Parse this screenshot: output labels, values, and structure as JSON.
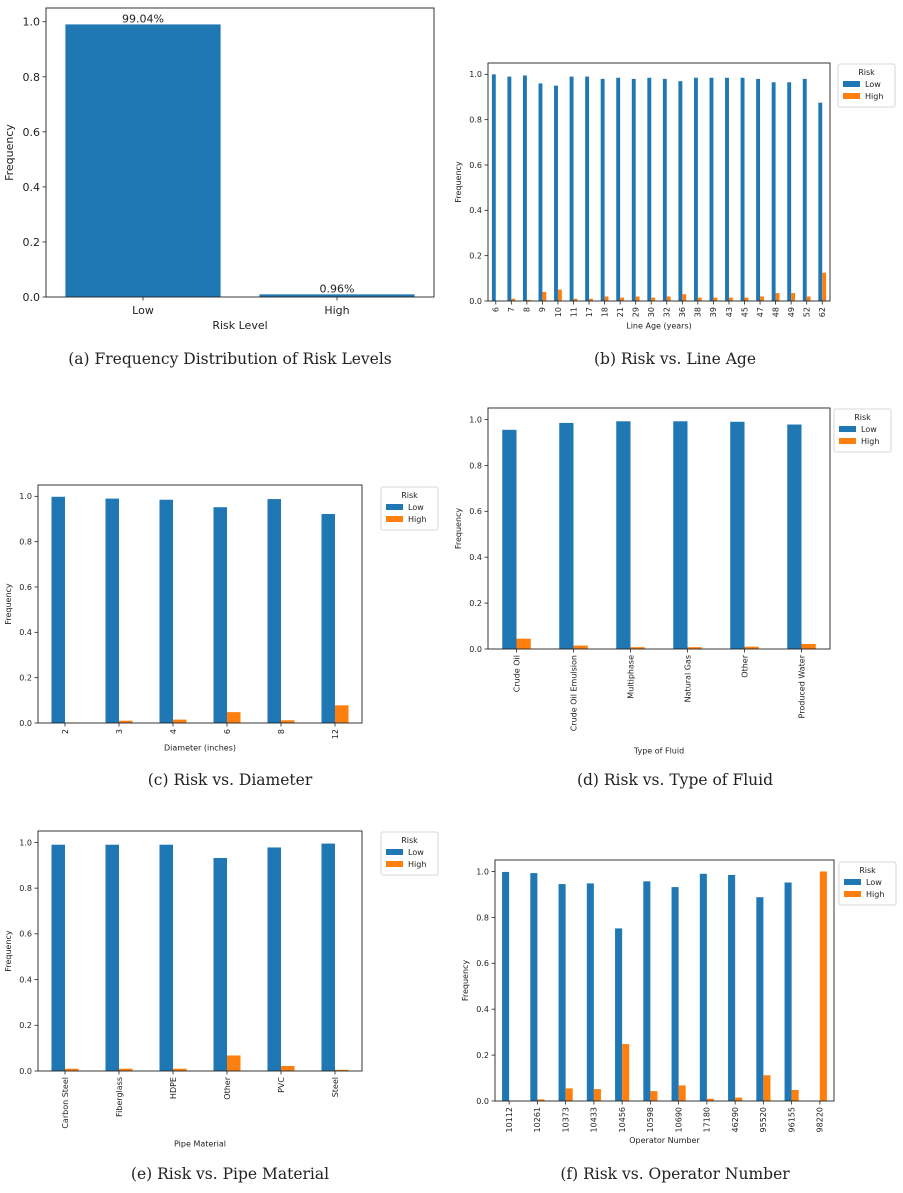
{
  "colors": {
    "low": "#1f77b4",
    "high": "#ff7f0e"
  },
  "chart_data": [
    {
      "id": "a",
      "type": "bar",
      "caption": "(a) Frequency Distribution of Risk Levels",
      "categories": [
        "Low",
        "High"
      ],
      "values": [
        0.9904,
        0.0096
      ],
      "data_labels": [
        "99.04%",
        "0.96%"
      ],
      "xlabel": "Risk Level",
      "ylabel": "Frequency",
      "ylim": [
        0,
        1.05
      ],
      "yticks": [
        0.0,
        0.2,
        0.4,
        0.6,
        0.8,
        1.0
      ],
      "legend": null,
      "grid": false
    },
    {
      "id": "b",
      "type": "bar",
      "caption": "(b) Risk vs. Line Age",
      "categories": [
        "6",
        "7",
        "8",
        "9",
        "10",
        "11",
        "17",
        "18",
        "21",
        "29",
        "30",
        "32",
        "36",
        "38",
        "39",
        "43",
        "45",
        "47",
        "48",
        "49",
        "52",
        "62"
      ],
      "series": [
        {
          "name": "Low",
          "values": [
            1.0,
            0.99,
            0.995,
            0.96,
            0.95,
            0.99,
            0.99,
            0.98,
            0.985,
            0.98,
            0.985,
            0.98,
            0.97,
            0.985,
            0.985,
            0.985,
            0.985,
            0.98,
            0.965,
            0.965,
            0.98,
            0.875
          ]
        },
        {
          "name": "High",
          "values": [
            0.0,
            0.01,
            0.005,
            0.04,
            0.05,
            0.01,
            0.01,
            0.02,
            0.015,
            0.02,
            0.015,
            0.02,
            0.03,
            0.015,
            0.015,
            0.015,
            0.015,
            0.02,
            0.035,
            0.035,
            0.02,
            0.125
          ]
        }
      ],
      "xlabel": "Line Age (years)",
      "ylabel": "Frequency",
      "ylim": [
        0,
        1.05
      ],
      "yticks": [
        0.0,
        0.2,
        0.4,
        0.6,
        0.8,
        1.0
      ],
      "legend": {
        "title": "Risk",
        "placement": "outside-right"
      },
      "grid": false
    },
    {
      "id": "c",
      "type": "bar",
      "caption": "(c) Risk vs. Diameter",
      "categories": [
        "2",
        "3",
        "4",
        "6",
        "8",
        "12"
      ],
      "series": [
        {
          "name": "Low",
          "values": [
            0.998,
            0.99,
            0.985,
            0.952,
            0.988,
            0.922
          ]
        },
        {
          "name": "High",
          "values": [
            0.002,
            0.01,
            0.015,
            0.048,
            0.012,
            0.078
          ]
        }
      ],
      "xlabel": "Diameter (inches)",
      "ylabel": "Frequency",
      "ylim": [
        0,
        1.05
      ],
      "yticks": [
        0.0,
        0.2,
        0.4,
        0.6,
        0.8,
        1.0
      ],
      "legend": {
        "title": "Risk",
        "placement": "outside-right"
      },
      "grid": false
    },
    {
      "id": "d",
      "type": "bar",
      "caption": "(d) Risk vs. Type of Fluid",
      "categories": [
        "Crude Oil",
        "Crude Oil Emulsion",
        "Multiphase",
        "Natural Gas",
        "Other",
        "Produced Water"
      ],
      "series": [
        {
          "name": "Low",
          "values": [
            0.955,
            0.985,
            0.992,
            0.992,
            0.99,
            0.978
          ]
        },
        {
          "name": "High",
          "values": [
            0.045,
            0.015,
            0.008,
            0.008,
            0.01,
            0.022
          ]
        }
      ],
      "xlabel": "Type of Fluid",
      "ylabel": "Frequency",
      "ylim": [
        0,
        1.05
      ],
      "yticks": [
        0.0,
        0.2,
        0.4,
        0.6,
        0.8,
        1.0
      ],
      "legend": {
        "title": "Risk",
        "placement": "outside-right"
      },
      "grid": false
    },
    {
      "id": "e",
      "type": "bar",
      "caption": "(e) Risk vs. Pipe Material",
      "categories": [
        "Carbon Steel",
        "Fiberglass",
        "HDPE",
        "Other",
        "PVC",
        "Steel"
      ],
      "series": [
        {
          "name": "Low",
          "values": [
            0.99,
            0.99,
            0.99,
            0.932,
            0.978,
            0.995
          ]
        },
        {
          "name": "High",
          "values": [
            0.01,
            0.01,
            0.01,
            0.068,
            0.022,
            0.005
          ]
        }
      ],
      "xlabel": "Pipe Material",
      "ylabel": "Frequency",
      "ylim": [
        0,
        1.05
      ],
      "yticks": [
        0.0,
        0.2,
        0.4,
        0.6,
        0.8,
        1.0
      ],
      "legend": {
        "title": "Risk",
        "placement": "outside-right"
      },
      "grid": false
    },
    {
      "id": "f",
      "type": "bar",
      "caption": "(f) Risk vs. Operator Number",
      "categories": [
        "10112",
        "10261",
        "10373",
        "10433",
        "10456",
        "10598",
        "10690",
        "17180",
        "46290",
        "95520",
        "96155",
        "98220"
      ],
      "series": [
        {
          "name": "Low",
          "values": [
            0.998,
            0.993,
            0.945,
            0.948,
            0.752,
            0.957,
            0.932,
            0.99,
            0.985,
            0.888,
            0.952,
            0.0
          ]
        },
        {
          "name": "High",
          "values": [
            0.002,
            0.007,
            0.055,
            0.052,
            0.248,
            0.043,
            0.068,
            0.01,
            0.015,
            0.112,
            0.048,
            1.0
          ]
        }
      ],
      "xlabel": "Operator Number",
      "ylabel": "Frequency",
      "ylim": [
        0,
        1.05
      ],
      "yticks": [
        0.0,
        0.2,
        0.4,
        0.6,
        0.8,
        1.0
      ],
      "legend": {
        "title": "Risk",
        "placement": "outside-right"
      },
      "grid": false
    }
  ]
}
